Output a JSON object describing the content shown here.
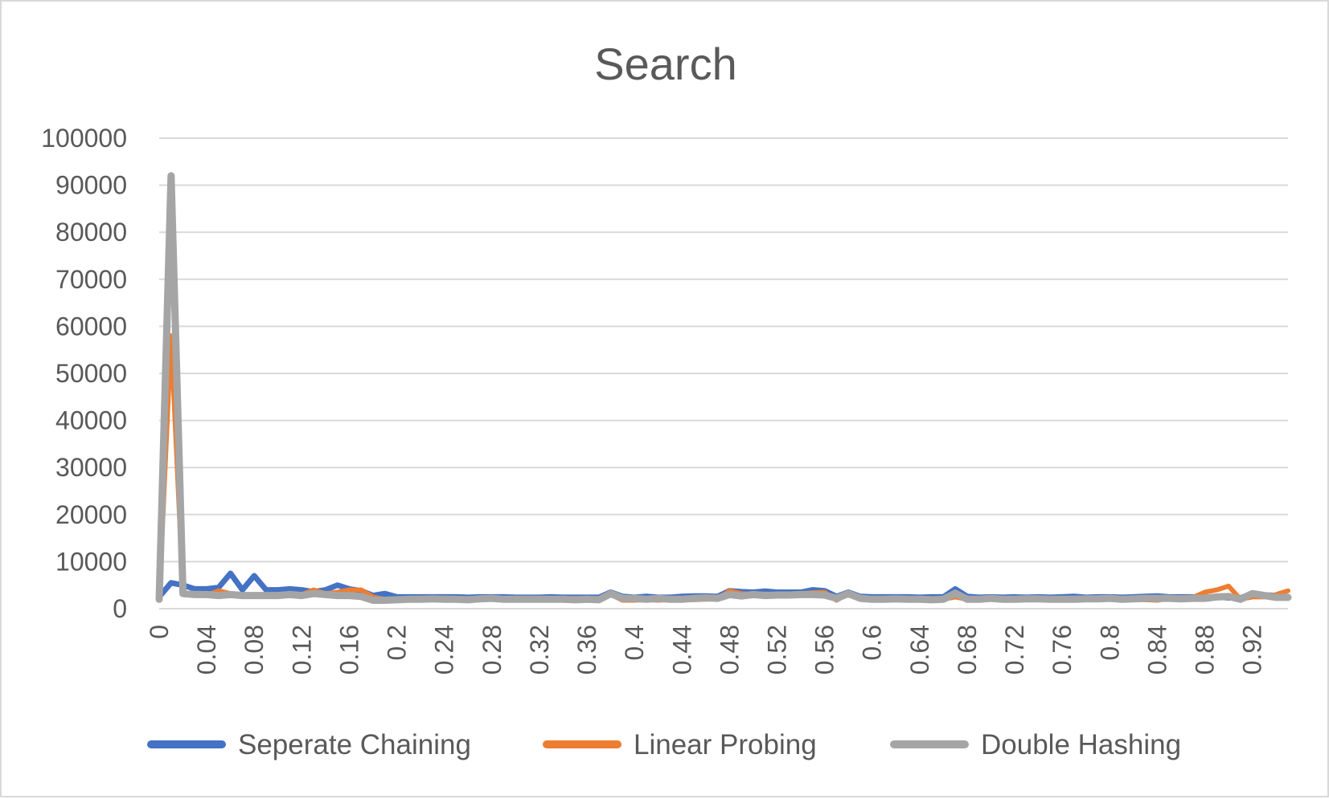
{
  "chart_data": {
    "type": "line",
    "title": "Search",
    "xlabel": "",
    "ylabel": "",
    "ylim": [
      0,
      100000
    ],
    "yticks": [
      "0",
      "10000",
      "20000",
      "30000",
      "40000",
      "50000",
      "60000",
      "70000",
      "80000",
      "90000",
      "100000"
    ],
    "ytick_values": [
      0,
      10000,
      20000,
      30000,
      40000,
      50000,
      60000,
      70000,
      80000,
      90000,
      100000
    ],
    "x": [
      "0",
      "0.01",
      "0.02",
      "0.03",
      "0.04",
      "0.05",
      "0.06",
      "0.07",
      "0.08",
      "0.09",
      "0.1",
      "0.11",
      "0.12",
      "0.13",
      "0.14",
      "0.15",
      "0.16",
      "0.17",
      "0.18",
      "0.19",
      "0.2",
      "0.21",
      "0.22",
      "0.23",
      "0.24",
      "0.25",
      "0.26",
      "0.27",
      "0.28",
      "0.29",
      "0.3",
      "0.31",
      "0.32",
      "0.33",
      "0.34",
      "0.35",
      "0.36",
      "0.37",
      "0.38",
      "0.39",
      "0.4",
      "0.41",
      "0.42",
      "0.43",
      "0.44",
      "0.45",
      "0.46",
      "0.47",
      "0.48",
      "0.49",
      "0.5",
      "0.51",
      "0.52",
      "0.53",
      "0.54",
      "0.55",
      "0.56",
      "0.57",
      "0.58",
      "0.59",
      "0.6",
      "0.61",
      "0.62",
      "0.63",
      "0.64",
      "0.65",
      "0.66",
      "0.67",
      "0.68",
      "0.69",
      "0.7",
      "0.71",
      "0.72",
      "0.73",
      "0.74",
      "0.75",
      "0.76",
      "0.77",
      "0.78",
      "0.79",
      "0.8",
      "0.81",
      "0.82",
      "0.83",
      "0.84",
      "0.85",
      "0.86",
      "0.87",
      "0.88",
      "0.89",
      "0.9",
      "0.91",
      "0.92",
      "0.93",
      "0.94",
      "0.95"
    ],
    "xticks_visible": [
      "0",
      "0.04",
      "0.08",
      "0.12",
      "0.16",
      "0.2",
      "0.24",
      "0.28",
      "0.32",
      "0.36",
      "0.4",
      "0.44",
      "0.48",
      "0.52",
      "0.56",
      "0.6",
      "0.64",
      "0.68",
      "0.72",
      "0.76",
      "0.8",
      "0.84",
      "0.88",
      "0.92"
    ],
    "grid": true,
    "legend_position": "bottom",
    "series": [
      {
        "name": "Seperate Chaining",
        "color": "#4472c4",
        "values": [
          2500,
          5500,
          5000,
          4200,
          4200,
          4500,
          7500,
          4000,
          7000,
          4000,
          4000,
          4200,
          4000,
          3600,
          4000,
          5000,
          4200,
          3800,
          2800,
          3200,
          2500,
          2500,
          2500,
          2500,
          2500,
          2500,
          2400,
          2500,
          2500,
          2500,
          2400,
          2400,
          2400,
          2500,
          2400,
          2400,
          2400,
          2400,
          3500,
          2600,
          2400,
          2600,
          2400,
          2400,
          2600,
          2700,
          2700,
          2600,
          3800,
          3600,
          3500,
          3700,
          3500,
          3500,
          3500,
          4000,
          3800,
          2600,
          3500,
          2600,
          2500,
          2500,
          2500,
          2500,
          2400,
          2500,
          2500,
          4200,
          2600,
          2400,
          2500,
          2400,
          2500,
          2400,
          2500,
          2400,
          2500,
          2600,
          2400,
          2500,
          2500,
          2400,
          2500,
          2600,
          2700,
          2500,
          2500,
          2500,
          2400,
          2500,
          2300,
          2300,
          3200,
          2900,
          2800,
          2500
        ]
      },
      {
        "name": "Linear Probing",
        "color": "#ed7d31",
        "values": [
          2000,
          58000,
          3500,
          3000,
          2800,
          3800,
          3200,
          2800,
          3000,
          3000,
          3000,
          3200,
          3000,
          4000,
          3200,
          3500,
          4000,
          4000,
          2500,
          2000,
          2000,
          2200,
          2300,
          2200,
          2300,
          2200,
          2100,
          2300,
          2200,
          2200,
          2200,
          2100,
          2200,
          2200,
          2100,
          2200,
          2100,
          2100,
          3000,
          1800,
          1800,
          1900,
          1800,
          1900,
          1900,
          1900,
          2000,
          2100,
          3800,
          3200,
          3000,
          3100,
          3000,
          3000,
          3200,
          3400,
          3500,
          1800,
          3200,
          2100,
          2000,
          2000,
          2200,
          2100,
          2000,
          1900,
          2000,
          2500,
          2000,
          1800,
          2000,
          1900,
          2000,
          2200,
          2300,
          2100,
          1900,
          2100,
          2200,
          2000,
          2000,
          2200,
          2000,
          1900,
          1800,
          2200,
          2100,
          2400,
          3500,
          4000,
          4800,
          2000,
          2500,
          2500,
          3000,
          3800
        ]
      },
      {
        "name": "Double Hashing",
        "color": "#a5a5a5",
        "values": [
          2000,
          92000,
          3200,
          3000,
          3000,
          2800,
          3000,
          2800,
          2800,
          2800,
          2800,
          3000,
          2800,
          3200,
          3000,
          2800,
          2800,
          2600,
          1800,
          1800,
          1900,
          2000,
          2000,
          2100,
          2000,
          2000,
          1900,
          2100,
          2200,
          2000,
          2000,
          2000,
          2000,
          2000,
          2000,
          1900,
          2000,
          1900,
          3200,
          2200,
          2200,
          2000,
          2200,
          2000,
          2000,
          2200,
          2300,
          2200,
          3000,
          2700,
          3000,
          2800,
          2900,
          2900,
          3000,
          3000,
          2900,
          2200,
          3200,
          2200,
          2000,
          2000,
          2100,
          2000,
          2000,
          1900,
          2000,
          3300,
          2000,
          2000,
          2200,
          2000,
          2000,
          2100,
          2100,
          2000,
          2000,
          2000,
          2100,
          2100,
          2200,
          2000,
          2100,
          2200,
          2200,
          2200,
          2100,
          2200,
          2200,
          2500,
          2600,
          2000,
          3200,
          2800,
          2400,
          2400
        ]
      }
    ]
  }
}
